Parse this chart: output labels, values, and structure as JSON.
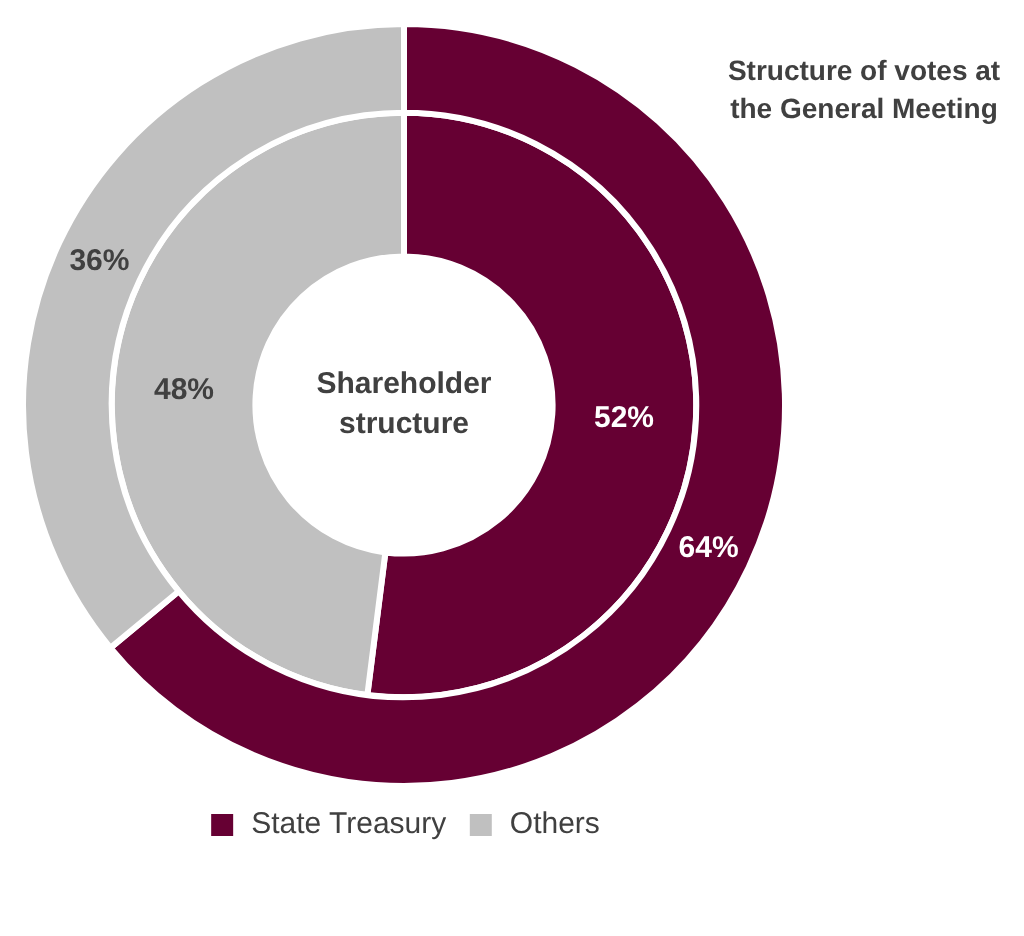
{
  "chart_data": {
    "type": "donut",
    "categories": [
      "State Treasury",
      "Others"
    ],
    "colors": [
      "#660033",
      "#c0c0c0"
    ],
    "series": [
      {
        "name": "Structure of votes at the General Meeting",
        "values": [
          64,
          36
        ],
        "value_labels": [
          "64%",
          "36%"
        ]
      },
      {
        "name": "Shareholder structure",
        "values": [
          52,
          48
        ],
        "value_labels": [
          "52%",
          "48%"
        ]
      }
    ],
    "legend": "bottom"
  }
}
